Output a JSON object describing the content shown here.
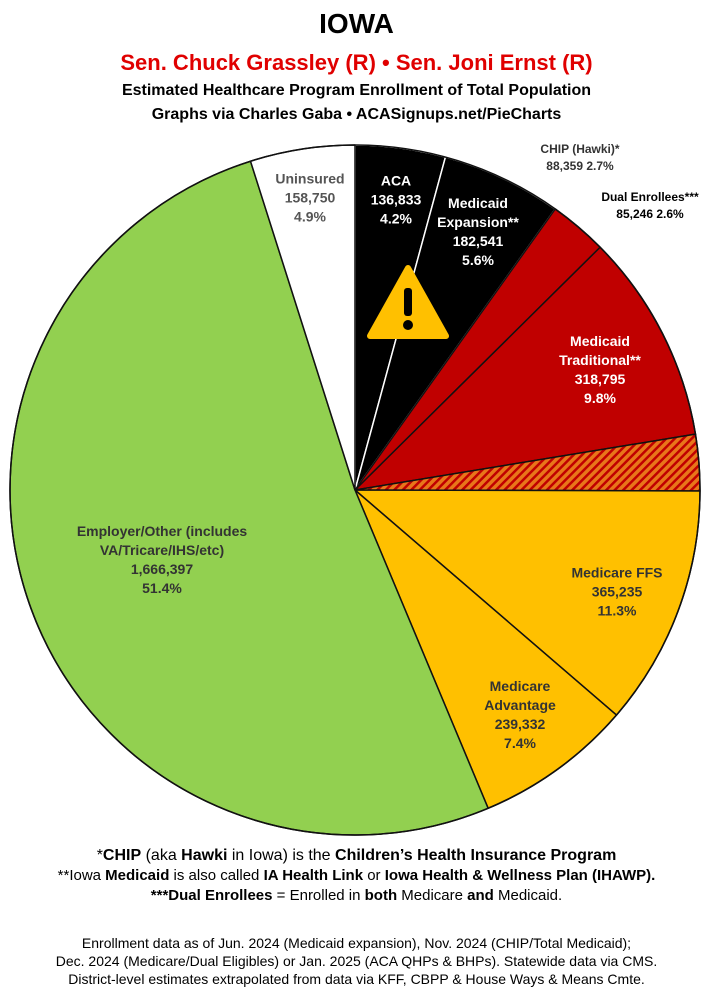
{
  "chart_data": {
    "type": "pie",
    "title": "IOWA",
    "subtitle": "Sen. Chuck Grassley (R) • Sen. Joni Ernst (R)",
    "caption": "Estimated Healthcare Program Enrollment of Total Population",
    "credit": "Graphs via Charles Gaba  •  ACASignups.net/PieCharts",
    "categories": [
      "ACA",
      "Medicaid Expansion**",
      "CHIP (Hawki)*",
      "Medicaid Traditional**",
      "Dual Enrollees***",
      "Medicare FFS",
      "Medicare Advantage",
      "Employer/Other (includes VA/Tricare/IHS/etc)",
      "Uninsured"
    ],
    "values": [
      136833,
      182541,
      88359,
      318795,
      85246,
      365235,
      239332,
      1666397,
      158750
    ],
    "value_labels": [
      "136,833",
      "182,541",
      "88,359",
      "318,795",
      "85,246",
      "365,235",
      "239,332",
      "1,666,397",
      "158,750"
    ],
    "percentages": [
      4.2,
      5.6,
      2.7,
      9.8,
      2.6,
      11.3,
      7.4,
      51.4,
      4.9
    ],
    "percentage_labels": [
      "4.2%",
      "5.6%",
      "2.7%",
      "9.8%",
      "2.6%",
      "11.3%",
      "7.4%",
      "51.4%",
      "4.9%"
    ],
    "colors": [
      "#000000",
      "#000000",
      "#c00000",
      "#c00000",
      "#e8761a",
      "#ffc000",
      "#ffc000",
      "#92d050",
      "#ffffff"
    ],
    "hatched": [
      false,
      false,
      false,
      false,
      true,
      false,
      false,
      false,
      false
    ],
    "notes": [
      [
        {
          "t": "*",
          "b": false
        },
        {
          "t": "CHIP",
          "b": true
        },
        {
          "t": " (aka ",
          "b": false
        },
        {
          "t": "Hawki",
          "b": true
        },
        {
          "t": " in Iowa) is the ",
          "b": false
        },
        {
          "t": "Children’s Health Insurance Program",
          "b": true
        }
      ],
      [
        {
          "t": "**Iowa ",
          "b": false
        },
        {
          "t": "Medicaid",
          "b": true
        },
        {
          "t": " is also called ",
          "b": false
        },
        {
          "t": "IA Health Link",
          "b": true
        },
        {
          "t": " or ",
          "b": false
        },
        {
          "t": "Iowa Health & Wellness Plan (IHAWP).",
          "b": true
        }
      ],
      [
        {
          "t": "***Dual Enrollees",
          "b": true
        },
        {
          "t": " = Enrolled in ",
          "b": false
        },
        {
          "t": "both",
          "b": true
        },
        {
          "t": " Medicare ",
          "b": false
        },
        {
          "t": "and",
          "b": true
        },
        {
          "t": " Medicaid.",
          "b": false
        }
      ]
    ],
    "source": [
      "Enrollment data as of Jun. 2024 (Medicaid expansion), Nov. 2024 (CHIP/Total Medicaid);",
      "Dec. 2024 (Medicare/Dual Eligibles) or Jan. 2025 (ACA QHPs & BHPs). Statewide data via CMS.",
      "District-level estimates extrapolated from data via KFF, CBPP & House Ways & Means Cmte."
    ]
  }
}
